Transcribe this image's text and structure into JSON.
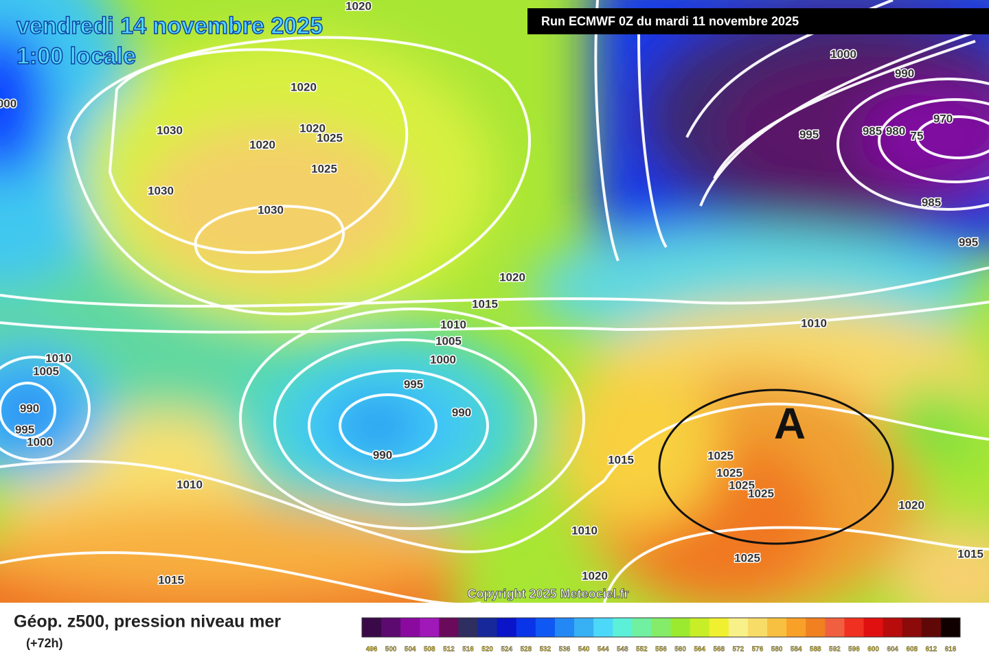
{
  "header": {
    "date": "vendredi 14 novembre 2025",
    "time": "1:00 locale",
    "run": "Run ECMWF 0Z du mardi 11 novembre 2025"
  },
  "map": {
    "high_marker": "A",
    "copyright": "Copyright 2025 Meteociel.fr",
    "isobar_labels": [
      "1020",
      "1020",
      "1030",
      "1020",
      "1020",
      "1025",
      "1025",
      "1030",
      "1030",
      "1000",
      "990",
      "995",
      "985",
      "980",
      "75",
      "970",
      "985",
      "995",
      "1020",
      "1015",
      "1010",
      "1005",
      "1000",
      "1010",
      "1010",
      "1005",
      "995",
      "990",
      "990",
      "995",
      "1000",
      "990",
      "1015",
      "1025",
      "1025",
      "1025",
      "1025",
      "1010",
      "1020",
      "1010",
      "1025",
      "1015",
      "1020",
      "1015",
      "000"
    ]
  },
  "footer": {
    "title": "Géop. z500, pression niveau mer",
    "lead": "(+72h)",
    "scale": [
      {
        "label": "496",
        "color": "#3a0a48"
      },
      {
        "label": "500",
        "color": "#5c0a70"
      },
      {
        "label": "504",
        "color": "#8a0aa0"
      },
      {
        "label": "508",
        "color": "#a018b8"
      },
      {
        "label": "512",
        "color": "#6a0a5a"
      },
      {
        "label": "516",
        "color": "#2e2e60"
      },
      {
        "label": "520",
        "color": "#16289a"
      },
      {
        "label": "524",
        "color": "#0a14c8"
      },
      {
        "label": "528",
        "color": "#0a34e8"
      },
      {
        "label": "532",
        "color": "#1058f4"
      },
      {
        "label": "536",
        "color": "#2488f4"
      },
      {
        "label": "540",
        "color": "#38b0f4"
      },
      {
        "label": "544",
        "color": "#4cd8f8"
      },
      {
        "label": "548",
        "color": "#5cf0d8"
      },
      {
        "label": "552",
        "color": "#70f0a0"
      },
      {
        "label": "556",
        "color": "#84ec68"
      },
      {
        "label": "560",
        "color": "#9cea30"
      },
      {
        "label": "564",
        "color": "#c8ee28"
      },
      {
        "label": "568",
        "color": "#f0f030"
      },
      {
        "label": "572",
        "color": "#f8f088"
      },
      {
        "label": "576",
        "color": "#f8dc68"
      },
      {
        "label": "580",
        "color": "#f8c040"
      },
      {
        "label": "584",
        "color": "#f8a028"
      },
      {
        "label": "588",
        "color": "#f08020"
      },
      {
        "label": "592",
        "color": "#f06040"
      },
      {
        "label": "596",
        "color": "#f03020"
      },
      {
        "label": "600",
        "color": "#e01010"
      },
      {
        "label": "604",
        "color": "#b80c0c"
      },
      {
        "label": "608",
        "color": "#8c0a0a"
      },
      {
        "label": "612",
        "color": "#600808"
      },
      {
        "label": "616",
        "color": "#100000"
      }
    ]
  }
}
